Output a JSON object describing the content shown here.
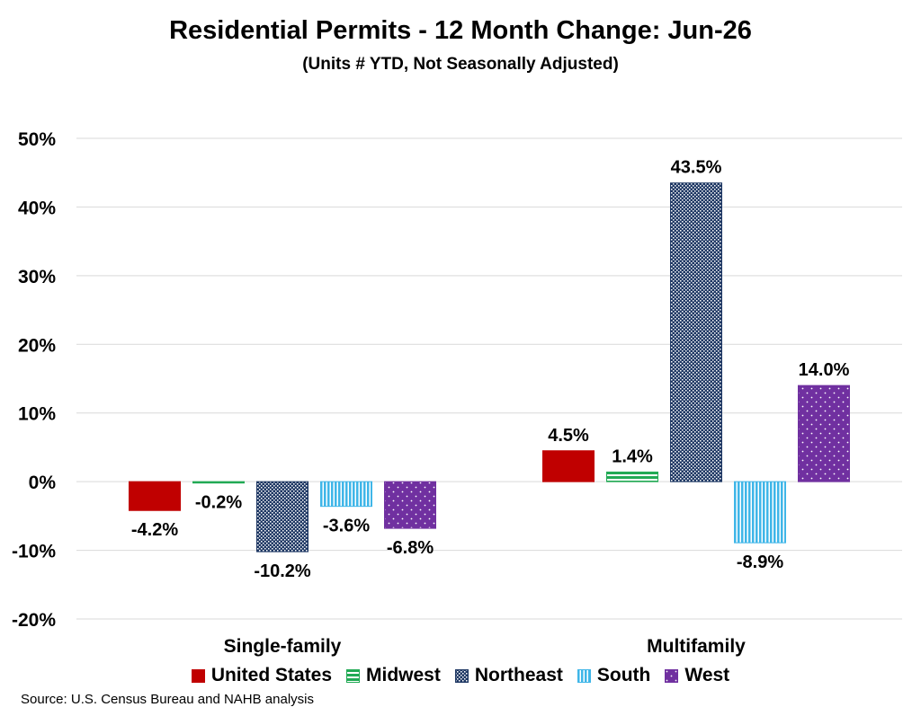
{
  "header": {
    "title": "Residential Permits - 12 Month Change:  Jun-26",
    "subtitle": "(Units # YTD, Not Seasonally Adjusted)"
  },
  "source": "Source: U.S. Census Bureau and NAHB analysis",
  "chart_data": {
    "type": "bar",
    "title": "Residential Permits - 12 Month Change:  Jun-26",
    "subtitle": "(Units # YTD, Not Seasonally Adjusted)",
    "categories": [
      "Single-family",
      "Multifamily"
    ],
    "series": [
      {
        "name": "United States",
        "values": [
          -4.2,
          4.5
        ],
        "labels": [
          "-4.2%",
          "4.5%"
        ],
        "color": "#c00000",
        "pattern": "solid"
      },
      {
        "name": "Midwest",
        "values": [
          -0.2,
          1.4
        ],
        "labels": [
          "-0.2%",
          "1.4%"
        ],
        "color": "#22aa55",
        "pattern": "horizontal-stripes"
      },
      {
        "name": "Northeast",
        "values": [
          -10.2,
          43.5
        ],
        "labels": [
          "-10.2%",
          "43.5%"
        ],
        "color": "#1f3864",
        "pattern": "small-checker"
      },
      {
        "name": "South",
        "values": [
          -3.6,
          -8.9
        ],
        "labels": [
          "-3.6%",
          "-8.9%"
        ],
        "color": "#3fb6e8",
        "pattern": "vertical-stripes"
      },
      {
        "name": "West",
        "values": [
          -6.8,
          14.0
        ],
        "labels": [
          "-6.8%",
          "14.0%"
        ],
        "color": "#7030a0",
        "pattern": "dots"
      }
    ],
    "ylim": [
      -20,
      50
    ],
    "yticks": [
      50,
      40,
      30,
      20,
      10,
      0,
      -10,
      -20
    ],
    "ytick_labels": [
      "50%",
      "40%",
      "30%",
      "20%",
      "10%",
      "0%",
      "-10%",
      "-20%"
    ],
    "grid": true,
    "legend": "bottom"
  }
}
